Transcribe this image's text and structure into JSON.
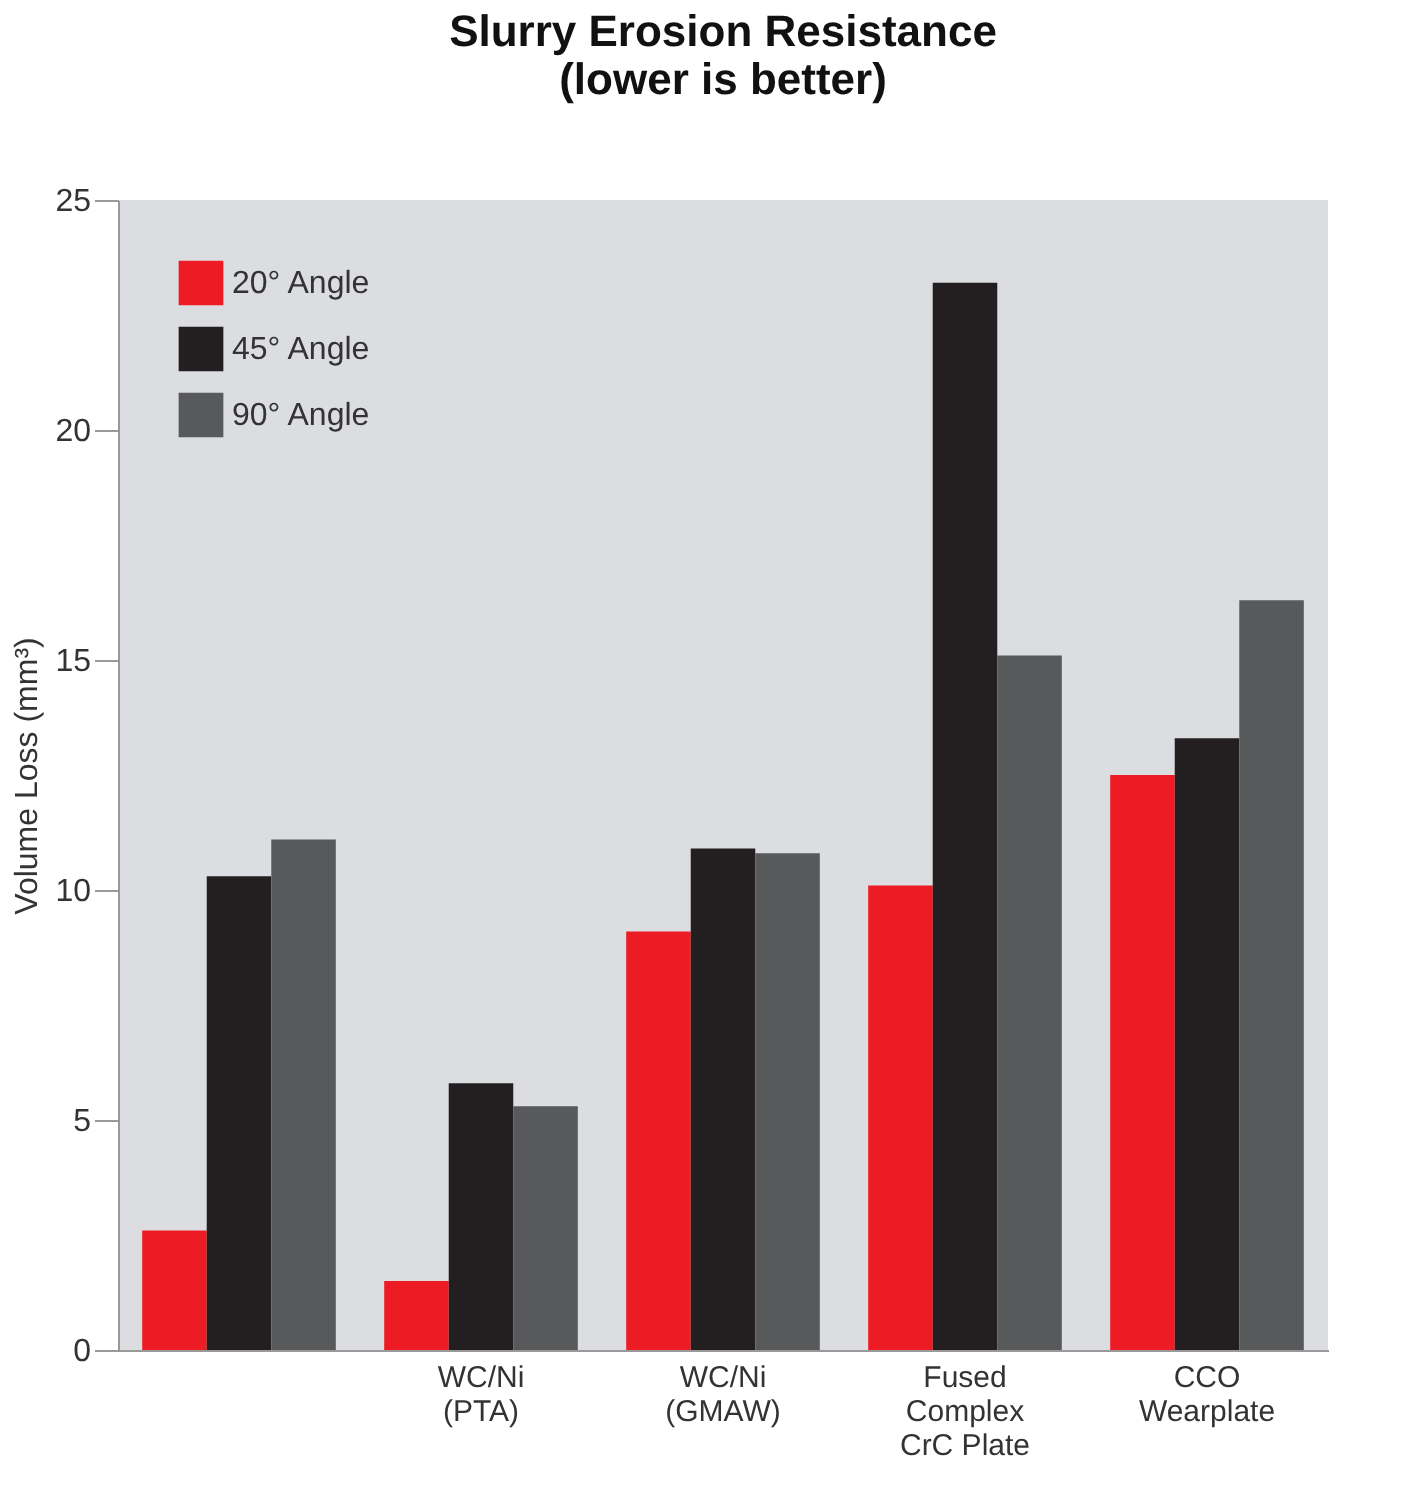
{
  "chart_data": {
    "type": "bar",
    "title": "Slurry Erosion Resistance\n(lower is better)",
    "ylabel": "Volume Loss (mm³)",
    "categories": [
      null,
      "WC/Ni\n(PTA)",
      "WC/Ni\n(GMAW)",
      "Fused\nComplex\nCrC Plate",
      "CCO\nWearplate"
    ],
    "series": [
      {
        "name": "20° Angle",
        "color": "#ed1c24",
        "values": [
          2.6,
          1.5,
          9.1,
          10.1,
          12.5
        ]
      },
      {
        "name": "45° Angle",
        "color": "#231f20",
        "values": [
          10.3,
          5.8,
          10.9,
          23.2,
          13.3
        ]
      },
      {
        "name": "90° Angle",
        "color": "#58595b",
        "values": [
          11.1,
          5.3,
          10.8,
          15.1,
          16.3
        ]
      }
    ],
    "ylim": [
      0,
      25
    ],
    "yticks": [
      0,
      5,
      10,
      15,
      20,
      25
    ],
    "grid": false,
    "legend": "top left"
  }
}
